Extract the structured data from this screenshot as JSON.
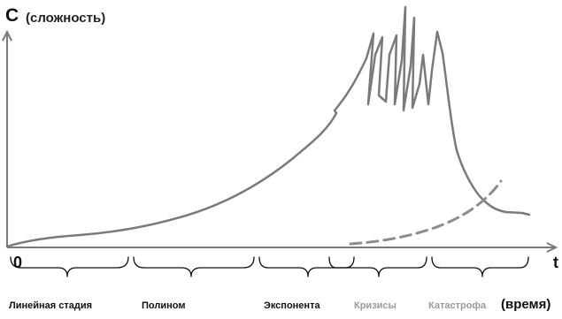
{
  "y_axis": {
    "letter": "C",
    "label": "(сложность)"
  },
  "x_axis": {
    "origin": "0",
    "letter": "t",
    "label": "(время)"
  },
  "phases": [
    {
      "label": "Линейная стадия",
      "color": "#111111"
    },
    {
      "label": "Полином",
      "color": "#111111"
    },
    {
      "label": "Экспонента",
      "color": "#111111"
    },
    {
      "label": "Кризисы",
      "color": "#9a9a9a"
    },
    {
      "label": "Катастрофа",
      "color": "#9a9a9a"
    }
  ],
  "colors": {
    "curve": "#7a7a7a",
    "dashed_curve": "#8c8c8c",
    "axis": "#7a7a7a",
    "brace": "#111111"
  }
}
